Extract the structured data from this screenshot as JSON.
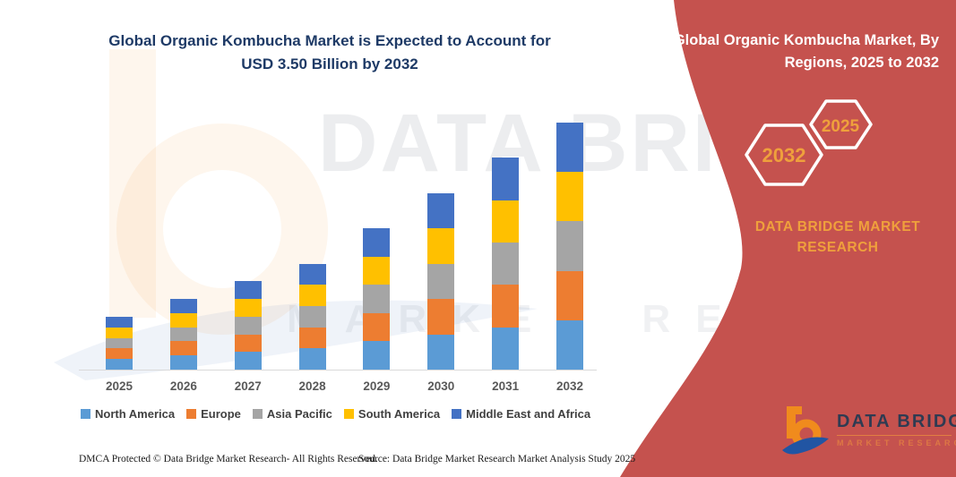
{
  "title": {
    "line1": "Global Organic Kombucha Market is Expected to Account for",
    "line2": "USD 3.50 Billion by 2032"
  },
  "panel": {
    "title_line1": "Global Organic Kombucha Market, By",
    "title_line2": "Regions, 2025 to 2032",
    "hexagon_left": "2032",
    "hexagon_right": "2025",
    "caption_line1": "DATA BRIDGE MARKET",
    "caption_line2": "RESEARCH"
  },
  "logo": {
    "name": "DATA BRIDGE",
    "subtitle": "MARKET RESEARCH"
  },
  "watermark": {
    "text1": "DATA BRIDGE",
    "text2": "MARKET RESEARCH"
  },
  "footer": {
    "left": "DMCA Protected © Data Bridge Market Research-  All Rights Reserved.",
    "right": "Source: Data Bridge Market Research  Market Analysis Study 2025"
  },
  "colors": {
    "panel_red": "#C5524E",
    "title_blue": "#1E3A66",
    "hexagon_text_orange": "#EFA03C",
    "caption_orange": "#EFA03C",
    "logo_navy": "#2F3B52",
    "logo_orange": "#F08B1D",
    "logo_blue": "#2155A3",
    "axis_label_gray": "#595959"
  },
  "chart_data": {
    "type": "bar",
    "stacked": true,
    "title": "Global Organic Kombucha Market is Expected to Account for USD 3.50 Billion by 2032",
    "unit": "USD Billion",
    "categories": [
      "2025",
      "2026",
      "2027",
      "2028",
      "2029",
      "2030",
      "2031",
      "2032"
    ],
    "series": [
      {
        "name": "North America",
        "color": "#5B9BD5",
        "values": [
          0.15,
          0.2,
          0.25,
          0.3,
          0.4,
          0.5,
          0.6,
          0.7
        ]
      },
      {
        "name": "Europe",
        "color": "#ED7D31",
        "values": [
          0.15,
          0.2,
          0.25,
          0.3,
          0.4,
          0.5,
          0.6,
          0.7
        ]
      },
      {
        "name": "Asia Pacific",
        "color": "#A5A5A5",
        "values": [
          0.15,
          0.2,
          0.25,
          0.3,
          0.4,
          0.5,
          0.6,
          0.7
        ]
      },
      {
        "name": "South America",
        "color": "#FFC000",
        "values": [
          0.15,
          0.2,
          0.25,
          0.3,
          0.4,
          0.5,
          0.6,
          0.7
        ]
      },
      {
        "name": "Middle East and Africa",
        "color": "#4472C4",
        "values": [
          0.15,
          0.2,
          0.25,
          0.3,
          0.4,
          0.5,
          0.6,
          0.7
        ]
      }
    ],
    "totals": [
      0.75,
      1.0,
      1.25,
      1.5,
      2.0,
      2.5,
      3.0,
      3.5
    ],
    "ylim": [
      0,
      3.6
    ],
    "grid": false,
    "legend_position": "bottom",
    "xlabel": "",
    "ylabel": ""
  }
}
